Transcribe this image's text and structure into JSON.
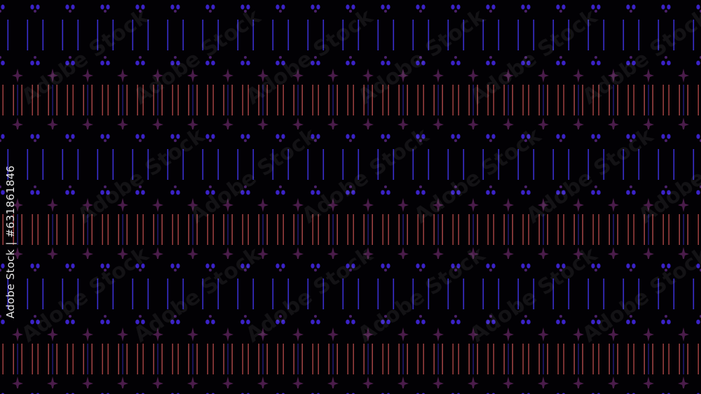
{
  "watermark": {
    "brand": "Adobe Stock",
    "side_label": "Adobe Stock | #631861846"
  },
  "colors": {
    "background": "#020104",
    "blue": "#3a2fd0",
    "red": "#b04a4a",
    "purple": "#5a1f5a"
  }
}
